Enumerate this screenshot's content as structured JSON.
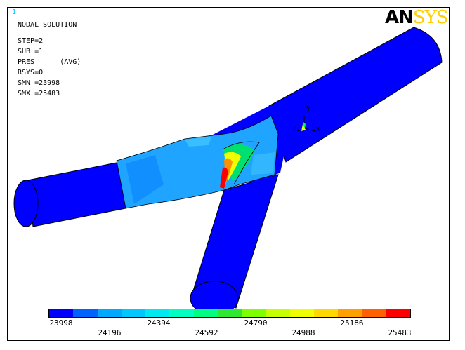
{
  "window_number": "1",
  "title": "NODAL SOLUTION",
  "info": {
    "step": "STEP=2",
    "sub": "SUB =1",
    "pres": "PRES      (AVG)",
    "rsys": "RSYS=0",
    "smn": "SMN =23998",
    "smx": "SMX =25483"
  },
  "logo": {
    "an": "AN",
    "sys": "SYS"
  },
  "triad": {
    "y": "Y",
    "z": "Z",
    "x": "X"
  },
  "legend": {
    "colors": [
      "#0000ff",
      "#0062ff",
      "#00a8ff",
      "#00c8ff",
      "#00e8f0",
      "#00ffc0",
      "#00ff80",
      "#30e830",
      "#80ff00",
      "#c8ff00",
      "#f0ff00",
      "#ffd800",
      "#ffa000",
      "#ff6000",
      "#ff0000"
    ],
    "labels_top": [
      "23998",
      "24394",
      "24790",
      "25186"
    ],
    "labels_bottom": [
      "24196",
      "24592",
      "24988",
      "25483"
    ]
  }
}
